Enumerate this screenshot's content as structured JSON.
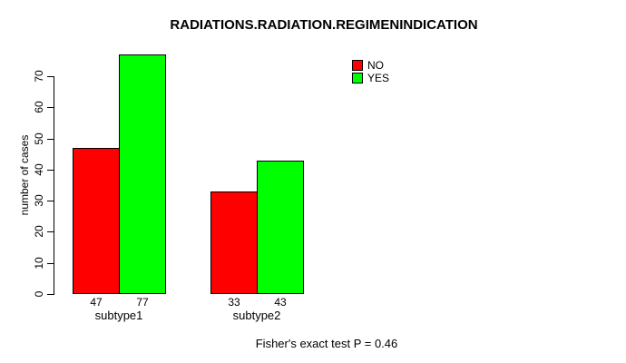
{
  "chart_data": {
    "type": "bar",
    "title": "RADIATIONS.RADIATION.REGIMENINDICATION",
    "ylabel": "number of cases",
    "xlabel": "",
    "categories": [
      "subtype1",
      "subtype2"
    ],
    "series": [
      {
        "name": "NO",
        "color": "#ff0000",
        "values": [
          47,
          33
        ]
      },
      {
        "name": "YES",
        "color": "#00ff00",
        "values": [
          77,
          43
        ]
      }
    ],
    "yticks": [
      0,
      10,
      20,
      30,
      40,
      50,
      60,
      70
    ],
    "ylim": [
      0,
      70
    ],
    "grid": false,
    "legend": {
      "position": "top-right",
      "entries": [
        "NO",
        "YES"
      ]
    },
    "bar_value_labels_shown": true,
    "annotation": "Fisher's exact test P = 0.46",
    "colors": {
      "background": "#ffffff",
      "axis": "#000000",
      "text": "#000000",
      "no_bar": "#ff0000",
      "yes_bar": "#00ff00"
    }
  }
}
